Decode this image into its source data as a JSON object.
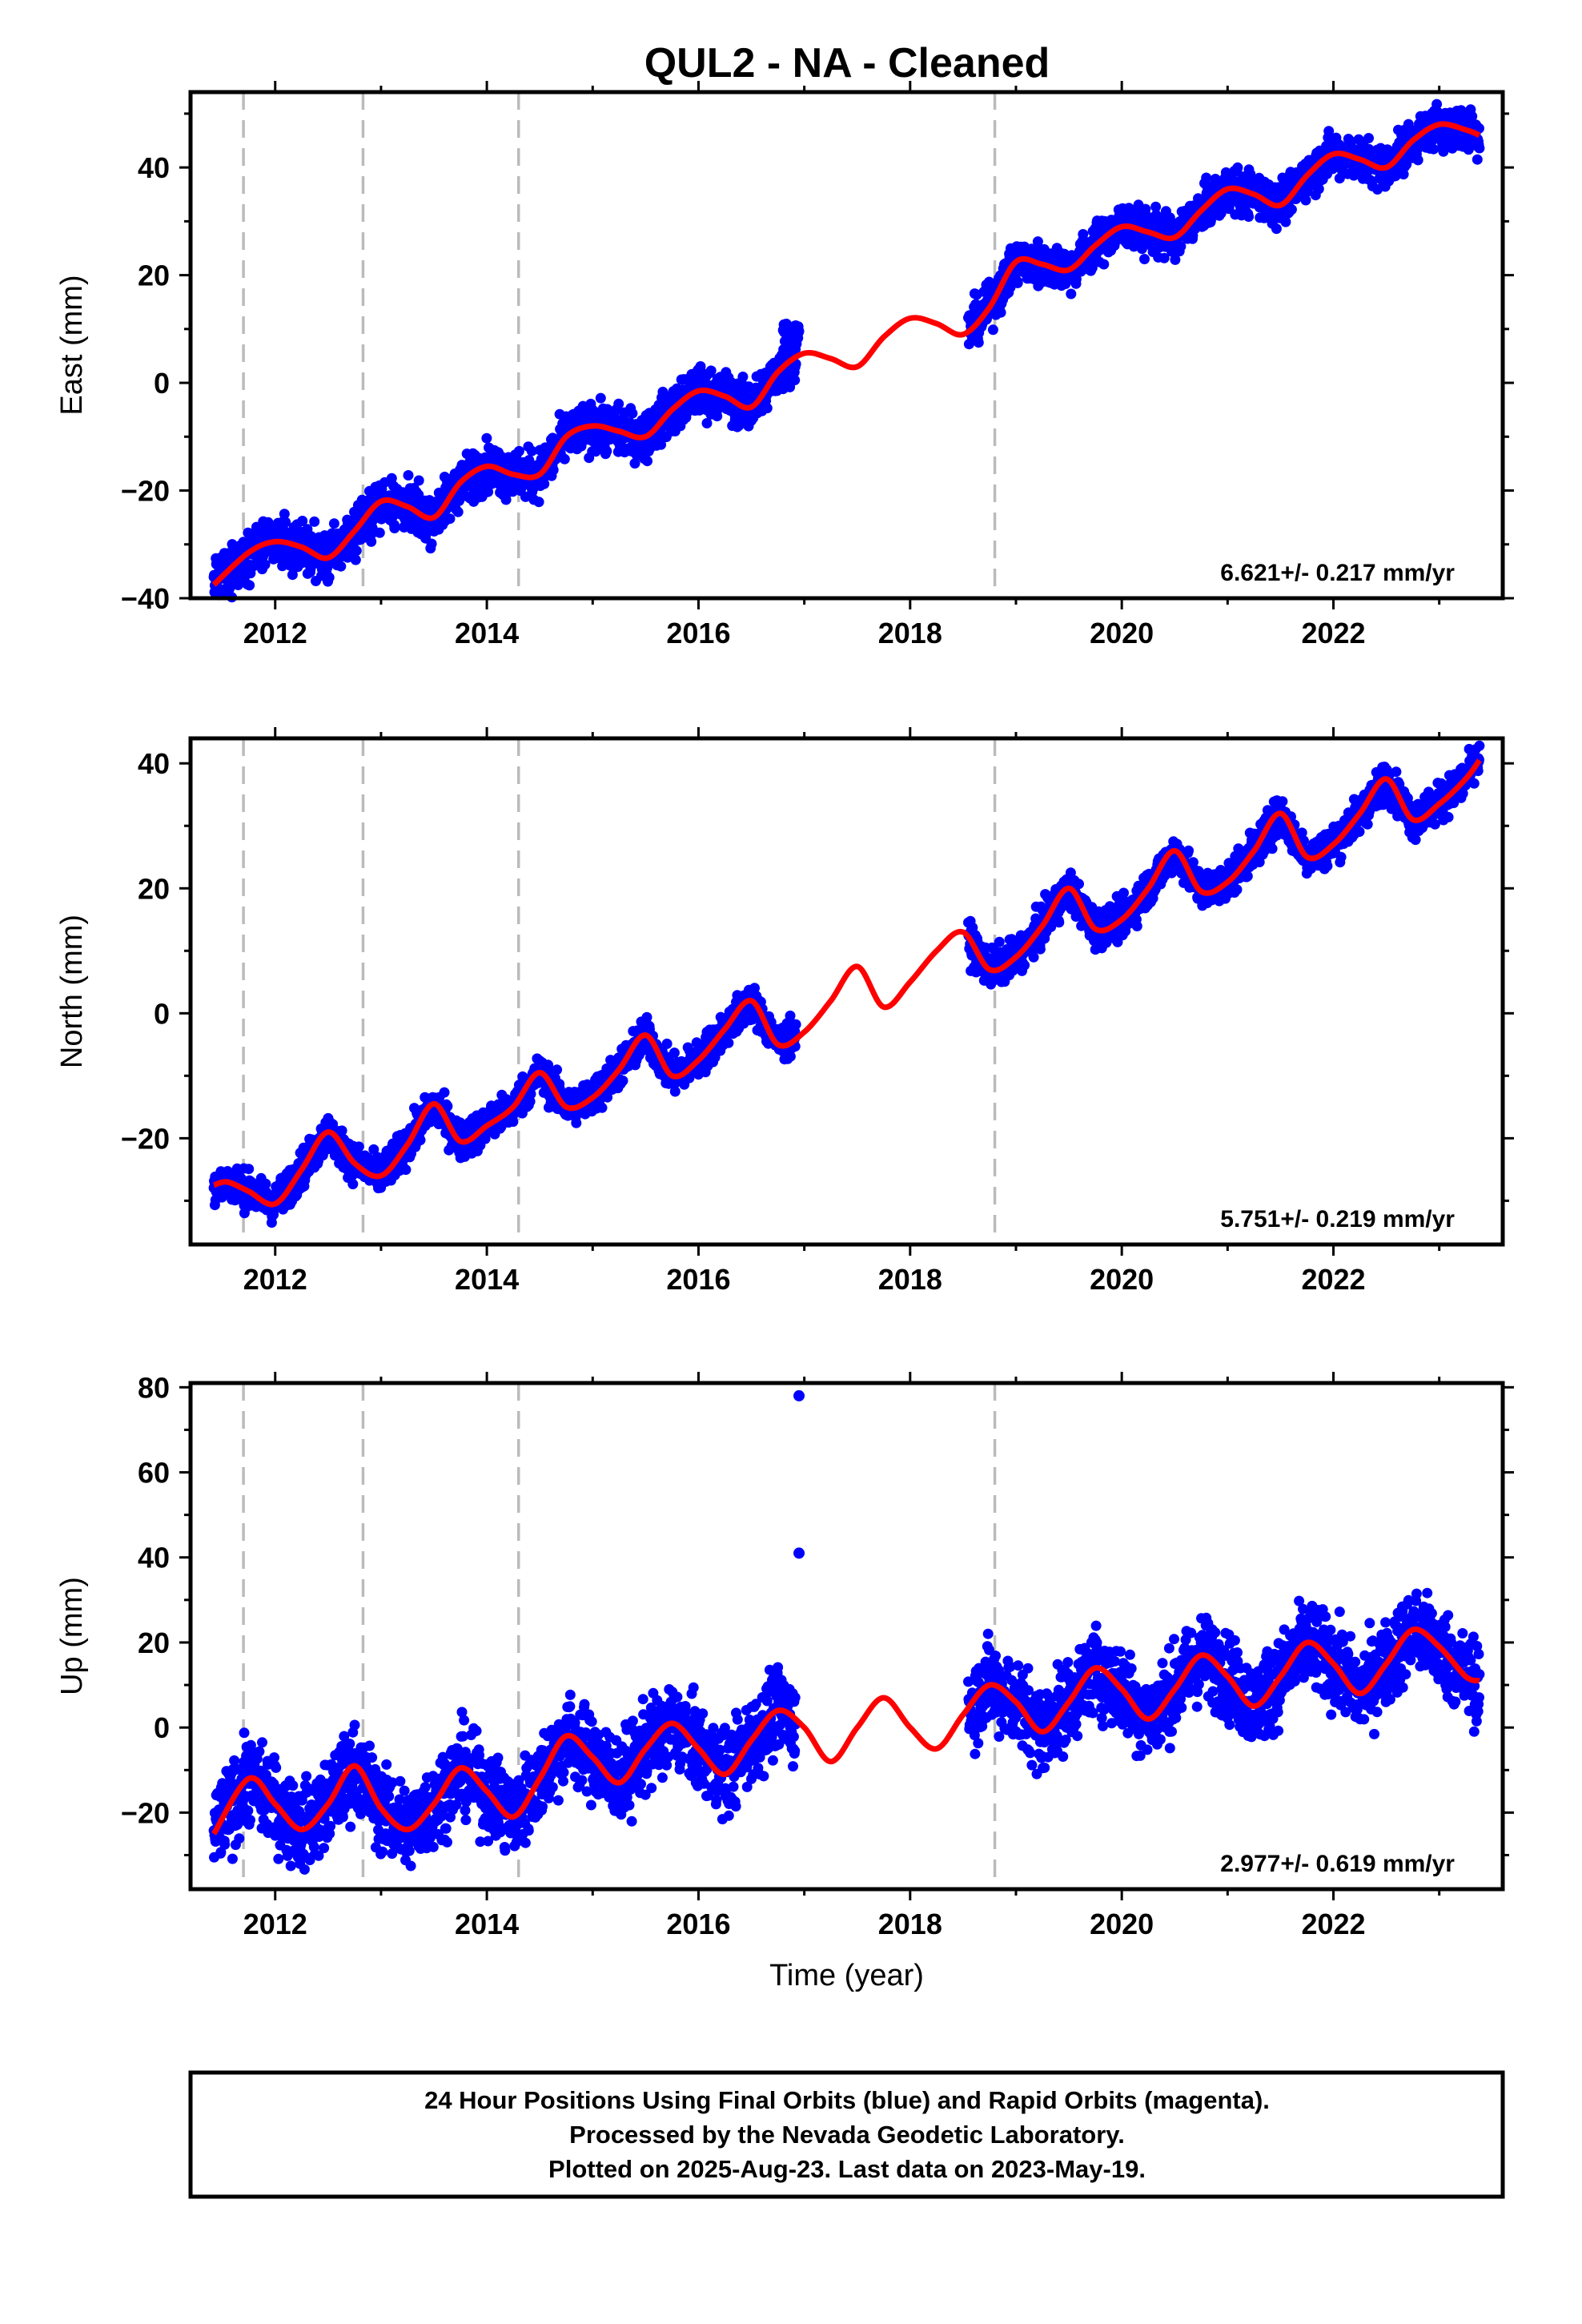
{
  "title": "QUL2  - NA - Cleaned",
  "colors": {
    "points": "#0000ff",
    "model": "#ff0000",
    "breaks": "#bbbbbb",
    "frame": "#000000"
  },
  "footer": {
    "lines": [
      "24 Hour Positions Using Final Orbits (blue) and Rapid Orbits (magenta).",
      "Processed by the Nevada Geodetic Laboratory.",
      "Plotted on 2025-Aug-23. Last data on 2023-May-19."
    ]
  },
  "chart_data": [
    {
      "type": "scatter",
      "component": "east",
      "ylabel": "East (mm)",
      "xlabel": "",
      "xlim": [
        2011.2,
        2023.6
      ],
      "ylim": [
        -40,
        54
      ],
      "xticks": [
        2012,
        2014,
        2016,
        2018,
        2020,
        2022
      ],
      "yticks": [
        -40,
        -20,
        0,
        20,
        40
      ],
      "rate_label": "6.621+/- 0.217 mm/yr",
      "step_epochs": [
        2011.7,
        2012.83,
        2014.3,
        2018.8
      ],
      "series": [
        {
          "role": "model",
          "x": [
            2011.42,
            2011.75,
            2012.0,
            2012.25,
            2012.5,
            2012.75,
            2013.0,
            2013.25,
            2013.5,
            2013.75,
            2014.0,
            2014.25,
            2014.5,
            2014.75,
            2015.0,
            2015.25,
            2015.5,
            2015.75,
            2016.0,
            2016.25,
            2016.5,
            2016.75,
            2017.0,
            2017.25,
            2017.5,
            2017.75,
            2018.0,
            2018.25,
            2018.5,
            2018.75,
            2019.0,
            2019.25,
            2019.5,
            2019.75,
            2020.0,
            2020.25,
            2020.5,
            2020.75,
            2021.0,
            2021.25,
            2021.5,
            2021.75,
            2022.0,
            2022.25,
            2022.5,
            2022.75,
            2023.0,
            2023.25,
            2023.38
          ],
          "y": [
            -37.5,
            -31.5,
            -29.5,
            -30.5,
            -32.5,
            -27.5,
            -22,
            -23,
            -25,
            -18.5,
            -15.5,
            -17,
            -17,
            -10,
            -8,
            -9,
            -10,
            -5,
            -1.5,
            -2.5,
            -4.5,
            2,
            5.5,
            4.5,
            3,
            8.5,
            12,
            11,
            9,
            14,
            22.5,
            22,
            21,
            25.5,
            29,
            28,
            27,
            32,
            36,
            35,
            33,
            38.5,
            42.5,
            41.5,
            40,
            45,
            48,
            47,
            46
          ]
        },
        {
          "role": "observations",
          "segments": [
            {
              "x": [
                2011.42,
                2016.92
              ],
              "trend": [
                -35.5,
                0.5
              ],
              "annual_amplitude": 2.5,
              "noise": 2.2
            },
            {
              "x": [
                2016.8,
                2016.95
              ],
              "trend": [
                9,
                9
              ],
              "annual_amplitude": 0,
              "noise": 1.2
            },
            {
              "x": [
                2018.55,
                2023.38
              ],
              "trend": [
                17.5,
                46
              ],
              "annual_amplitude": 2.5,
              "noise": 2.0
            }
          ]
        }
      ]
    },
    {
      "type": "scatter",
      "component": "north",
      "ylabel": "North (mm)",
      "xlabel": "",
      "xlim": [
        2011.2,
        2023.6
      ],
      "ylim": [
        -37,
        44
      ],
      "xticks": [
        2012,
        2014,
        2016,
        2018,
        2020,
        2022
      ],
      "yticks": [
        -20,
        0,
        20,
        40
      ],
      "rate_label": "5.751+/- 0.219 mm/yr",
      "step_epochs": [
        2011.7,
        2012.83,
        2014.3,
        2018.8
      ],
      "series": [
        {
          "role": "model",
          "x": [
            2011.42,
            2011.55,
            2011.75,
            2012.0,
            2012.25,
            2012.5,
            2012.75,
            2013.0,
            2013.25,
            2013.5,
            2013.75,
            2014.0,
            2014.25,
            2014.5,
            2014.75,
            2015.0,
            2015.25,
            2015.5,
            2015.75,
            2016.0,
            2016.25,
            2016.5,
            2016.75,
            2017.0,
            2017.25,
            2017.5,
            2017.75,
            2018.0,
            2018.25,
            2018.5,
            2018.75,
            2019.0,
            2019.25,
            2019.5,
            2019.75,
            2020.0,
            2020.25,
            2020.5,
            2020.75,
            2021.0,
            2021.25,
            2021.5,
            2021.75,
            2022.0,
            2022.25,
            2022.5,
            2022.75,
            2023.0,
            2023.25,
            2023.38
          ],
          "y": [
            -27.5,
            -27,
            -28.5,
            -30.5,
            -25,
            -19,
            -24,
            -26,
            -21,
            -14.5,
            -20.5,
            -18,
            -15,
            -9.5,
            -15,
            -13.5,
            -9,
            -3.5,
            -10,
            -7.5,
            -2.5,
            2,
            -5,
            -3,
            2,
            7.5,
            1,
            5,
            10,
            13,
            7,
            9,
            14,
            20,
            13.5,
            15,
            20,
            26,
            19.5,
            21,
            26,
            32,
            25,
            27,
            32,
            37.5,
            31,
            33.5,
            37.5,
            40.5
          ]
        },
        {
          "role": "observations",
          "segments": [
            {
              "x": [
                2011.42,
                2016.92
              ],
              "trend": [
                -29,
                -1
              ],
              "annual_amplitude": 4.2,
              "noise": 1.5
            },
            {
              "x": [
                2018.55,
                2023.38
              ],
              "trend": [
                8,
                37
              ],
              "annual_amplitude": 4.2,
              "noise": 1.5
            }
          ]
        }
      ]
    },
    {
      "type": "scatter",
      "component": "up",
      "ylabel": "Up (mm)",
      "xlabel": "Time (year)",
      "xlim": [
        2011.2,
        2023.6
      ],
      "ylim": [
        -38,
        81
      ],
      "xticks": [
        2012,
        2014,
        2016,
        2018,
        2020,
        2022
      ],
      "yticks": [
        -20,
        0,
        20,
        40,
        60,
        80
      ],
      "rate_label": "2.977+/- 0.619 mm/yr",
      "step_epochs": [
        2011.7,
        2012.83,
        2014.3,
        2018.8
      ],
      "outliers": [
        {
          "x": 2016.95,
          "y": 78
        },
        {
          "x": 2016.95,
          "y": 41
        }
      ],
      "series": [
        {
          "role": "model",
          "x": [
            2011.42,
            2011.75,
            2012.0,
            2012.25,
            2012.5,
            2012.75,
            2013.0,
            2013.25,
            2013.5,
            2013.75,
            2014.0,
            2014.25,
            2014.5,
            2014.75,
            2015.0,
            2015.25,
            2015.5,
            2015.75,
            2016.0,
            2016.25,
            2016.5,
            2016.75,
            2017.0,
            2017.25,
            2017.5,
            2017.75,
            2018.0,
            2018.25,
            2018.5,
            2018.75,
            2019.0,
            2019.25,
            2019.5,
            2019.75,
            2020.0,
            2020.25,
            2020.5,
            2020.75,
            2021.0,
            2021.25,
            2021.5,
            2021.75,
            2022.0,
            2022.25,
            2022.5,
            2022.75,
            2023.0,
            2023.25,
            2023.38
          ],
          "y": [
            -25,
            -12,
            -18,
            -24,
            -18,
            -9,
            -19,
            -24,
            -18,
            -9.5,
            -15,
            -21,
            -12,
            -2,
            -7,
            -13,
            -5,
            1,
            -5,
            -11,
            -3,
            4,
            0,
            -8,
            0,
            7,
            0,
            -5,
            3,
            10,
            6,
            -1,
            6,
            14,
            9,
            2,
            9,
            17,
            12,
            5,
            12,
            20,
            15,
            8,
            15,
            23,
            19,
            12,
            11
          ]
        },
        {
          "role": "observations",
          "segments": [
            {
              "x": [
                2011.42,
                2016.92
              ],
              "trend": [
                -18,
                -4
              ],
              "annual_amplitude": 7,
              "noise": 5
            },
            {
              "x": [
                2018.55,
                2023.38
              ],
              "trend": [
                6,
                17
              ],
              "annual_amplitude": 7,
              "noise": 5
            }
          ]
        }
      ]
    }
  ]
}
